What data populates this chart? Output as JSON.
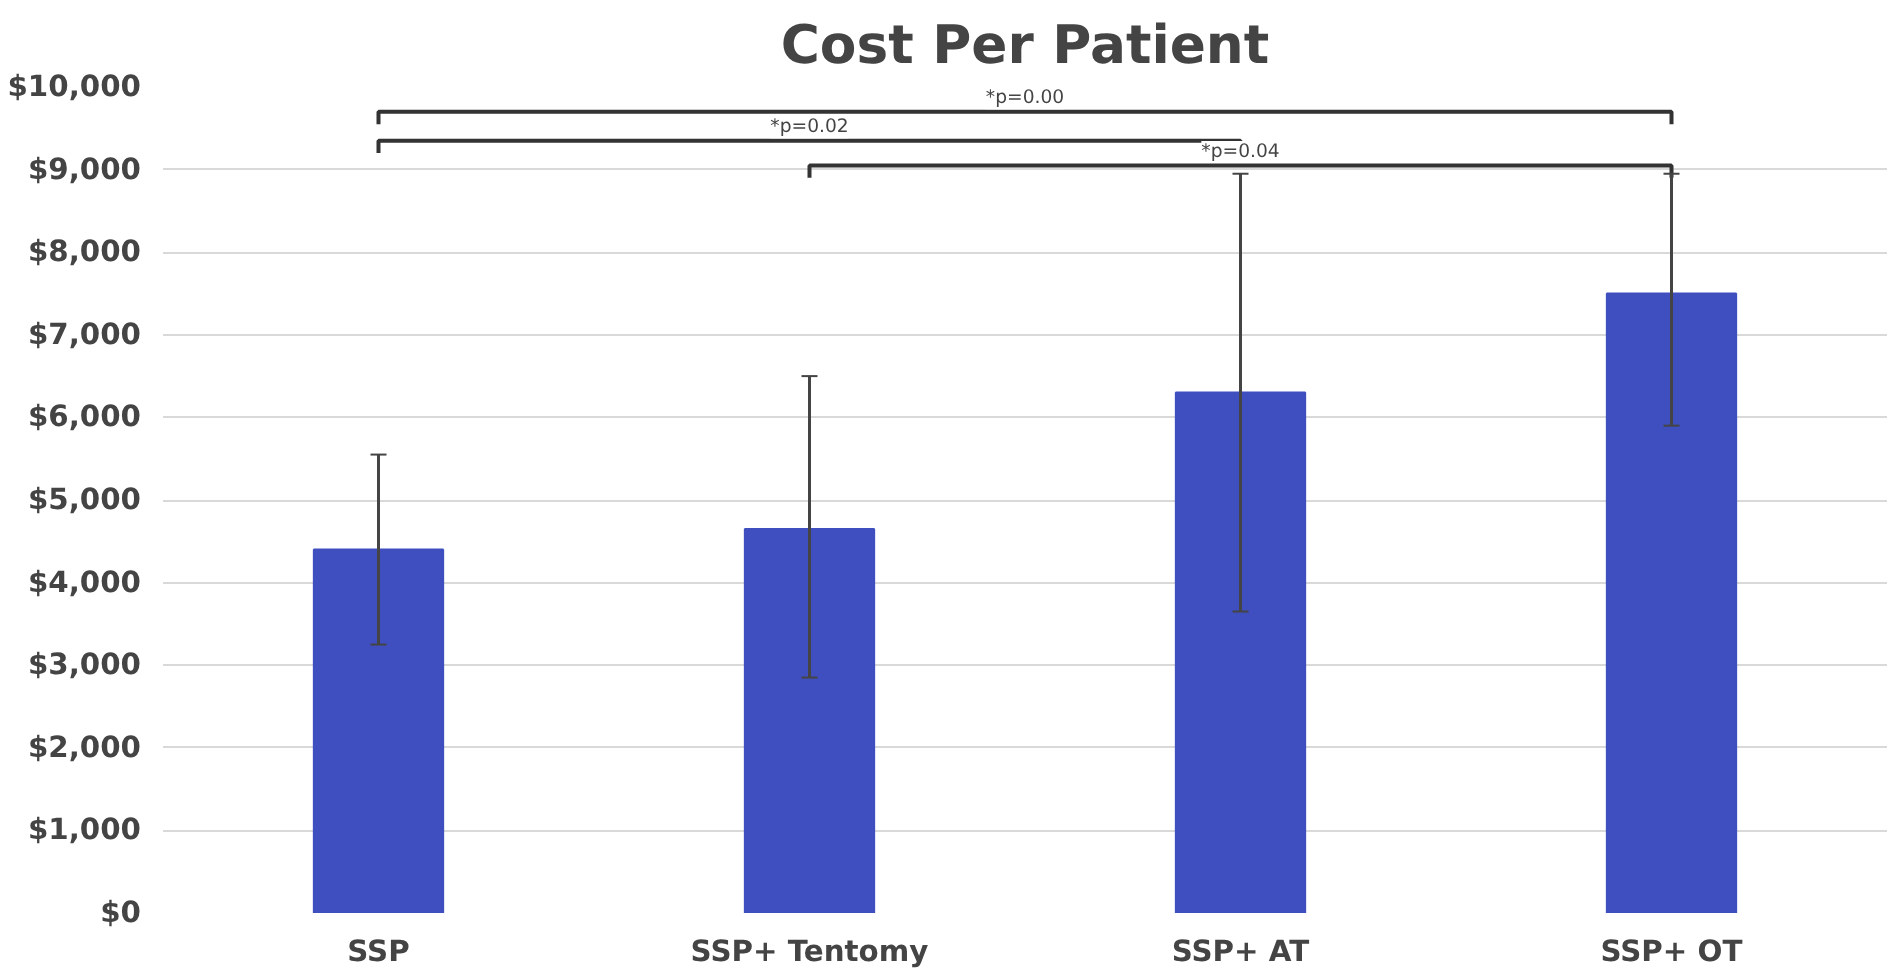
{
  "chart_data": {
    "type": "bar",
    "title": "Cost Per Patient",
    "categories": [
      "SSP",
      "SSP+ Tentomy",
      "SSP+ AT",
      "SSP+ OT"
    ],
    "values": [
      4400,
      4650,
      6300,
      7500
    ],
    "errors": [
      [
        3250,
        5550
      ],
      [
        2850,
        6500
      ],
      [
        3650,
        8950
      ],
      [
        5900,
        8950
      ]
    ],
    "color": "#3f4fbf",
    "ylim": [
      0,
      10000
    ],
    "yticks": [
      {
        "value": 0,
        "label": "$0"
      },
      {
        "value": 1000,
        "label": "$1,000"
      },
      {
        "value": 2000,
        "label": "$2,000"
      },
      {
        "value": 3000,
        "label": "$3,000"
      },
      {
        "value": 4000,
        "label": "$4,000"
      },
      {
        "value": 5000,
        "label": "$5,000"
      },
      {
        "value": 6000,
        "label": "$6,000"
      },
      {
        "value": 7000,
        "label": "$7,000"
      },
      {
        "value": 8000,
        "label": "$8,000"
      },
      {
        "value": 9000,
        "label": "$9,000"
      },
      {
        "value": 10000,
        "label": "$10,000"
      }
    ],
    "grid": "y",
    "annotations": [
      "*p=0.00",
      "*p=0.02",
      "*p=0.04"
    ]
  }
}
